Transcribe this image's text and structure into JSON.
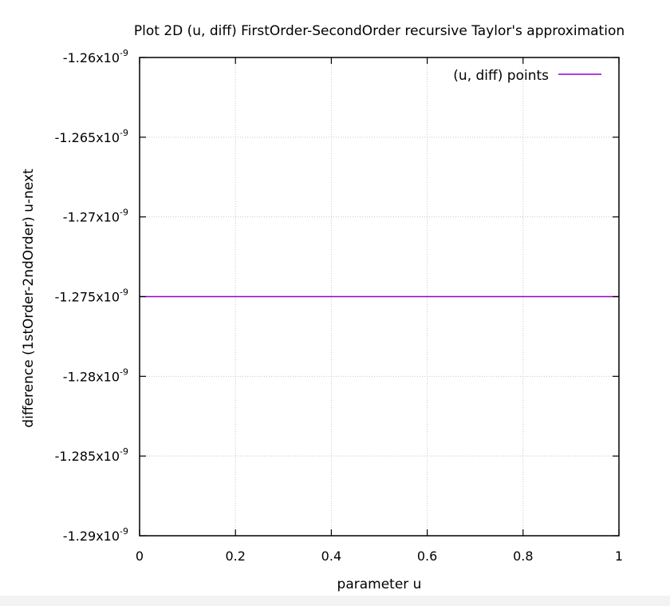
{
  "chart_data": {
    "type": "line",
    "title": "Plot 2D (u, diff) FirstOrder-SecondOrder recursive Taylor's approximation",
    "xlabel": "parameter u",
    "ylabel": "difference (1stOrder-2ndOrder) u-next",
    "xlim": [
      0,
      1
    ],
    "ylim": [
      -1.29e-09,
      -1.26e-09
    ],
    "x_ticks": [
      {
        "value": 0,
        "label": "0"
      },
      {
        "value": 0.2,
        "label": "0.2"
      },
      {
        "value": 0.4,
        "label": "0.4"
      },
      {
        "value": 0.6,
        "label": "0.6"
      },
      {
        "value": 0.8,
        "label": "0.8"
      },
      {
        "value": 1,
        "label": "1"
      }
    ],
    "y_ticks": [
      {
        "value": -1.26e-09,
        "mantissa": "-1.26x10",
        "exponent": "-9"
      },
      {
        "value": -1.265e-09,
        "mantissa": "-1.265x10",
        "exponent": "-9"
      },
      {
        "value": -1.27e-09,
        "mantissa": "-1.27x10",
        "exponent": "-9"
      },
      {
        "value": -1.275e-09,
        "mantissa": "-1.275x10",
        "exponent": "-9"
      },
      {
        "value": -1.28e-09,
        "mantissa": "-1.28x10",
        "exponent": "-9"
      },
      {
        "value": -1.285e-09,
        "mantissa": "-1.285x10",
        "exponent": "-9"
      },
      {
        "value": -1.29e-09,
        "mantissa": "-1.29x10",
        "exponent": "-9"
      }
    ],
    "grid": true,
    "legend_position": "top-right",
    "series": [
      {
        "name": "(u, diff) points",
        "color": "#9400d3",
        "x": [
          0,
          0.1,
          0.2,
          0.3,
          0.4,
          0.5,
          0.6,
          0.7,
          0.8,
          0.9,
          1
        ],
        "y": [
          -1.275e-09,
          -1.275e-09,
          -1.275e-09,
          -1.275e-09,
          -1.275e-09,
          -1.275e-09,
          -1.275e-09,
          -1.275e-09,
          -1.275e-09,
          -1.275e-09,
          -1.275e-09
        ]
      }
    ]
  }
}
